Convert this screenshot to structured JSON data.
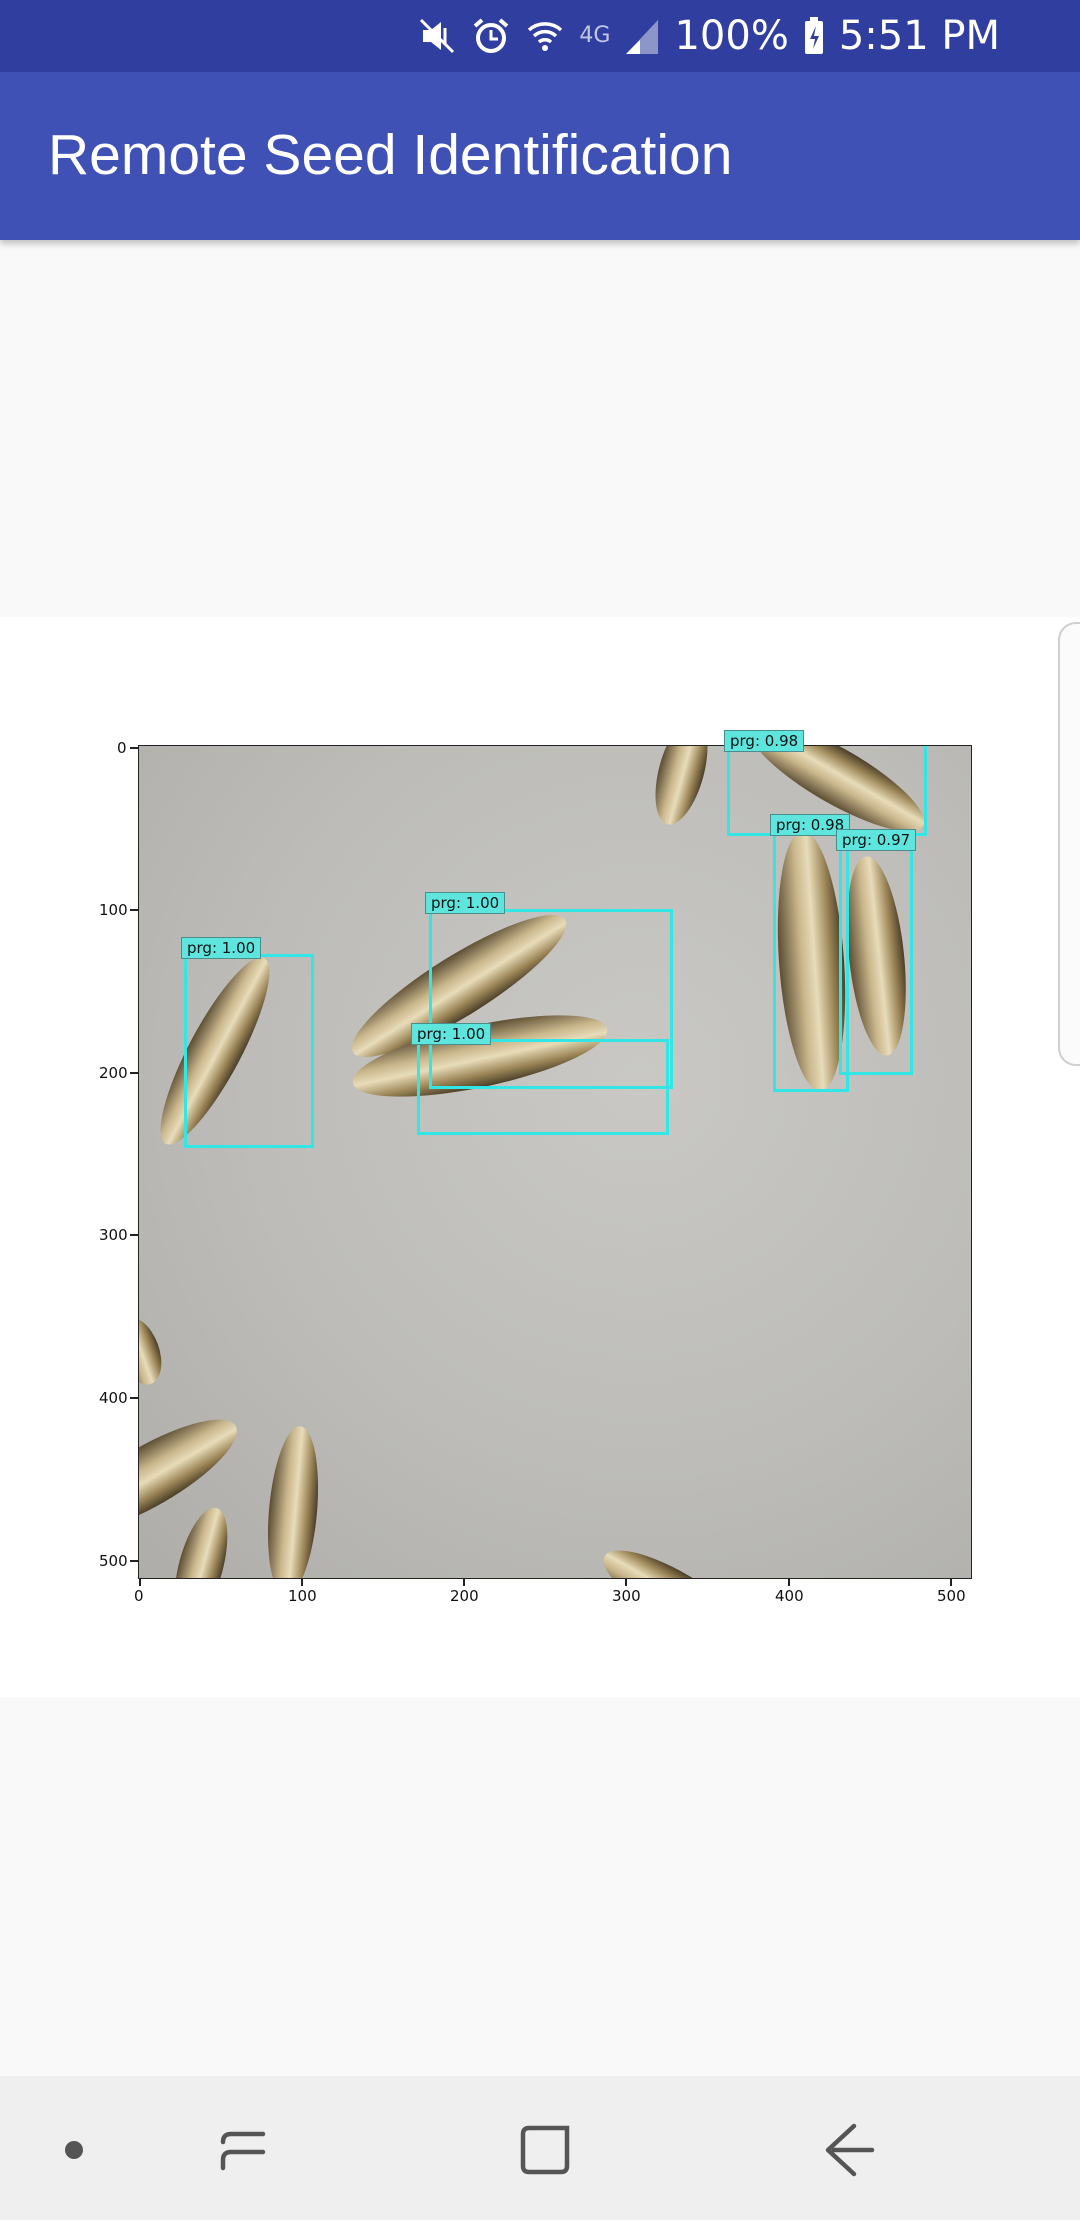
{
  "status_bar": {
    "battery": "100%",
    "time": "5:51 PM",
    "network": "4G"
  },
  "app_bar": {
    "title": "Remote Seed Identification"
  },
  "plot": {
    "x_ticks": [
      "0",
      "100",
      "200",
      "300",
      "400",
      "500"
    ],
    "y_ticks": [
      "0",
      "100",
      "200",
      "300",
      "400",
      "500"
    ]
  },
  "detections": [
    {
      "label": "prg: 1.00"
    },
    {
      "label": "prg: 1.00"
    },
    {
      "label": "prg: 1.00"
    },
    {
      "label": "prg: 0.98"
    },
    {
      "label": "prg: 0.98"
    },
    {
      "label": "prg: 0.97"
    }
  ],
  "nav_bar": {
    "items": [
      "dot-button",
      "recents-button",
      "home-button",
      "back-button"
    ]
  },
  "colors": {
    "status_bar": "#303f9f",
    "app_bar": "#3f51b5",
    "box": "#33e6e6",
    "label_bg": "#5ee6de"
  }
}
